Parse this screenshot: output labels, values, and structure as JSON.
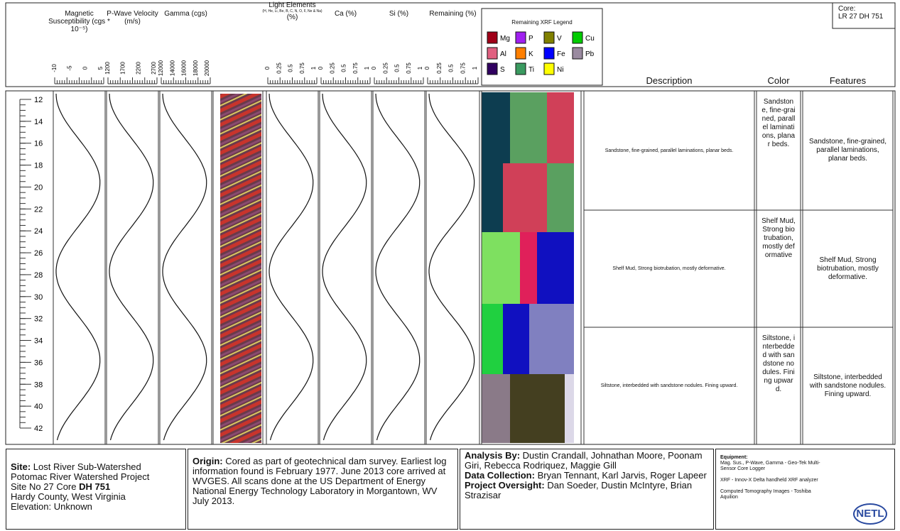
{
  "core": {
    "label": "Core:",
    "id": "LR 27 DH 751"
  },
  "tracks": [
    {
      "title": "Magnetic Susceptibility (cgs * 10⁻⁵)",
      "scale": [
        -10,
        -5,
        0,
        5
      ]
    },
    {
      "title": "P-Wave Velocity (m/s)",
      "scale": [
        1200,
        1700,
        2200,
        2700
      ]
    },
    {
      "title": "Gamma (cgs)",
      "scale": [
        12000,
        14000,
        16000,
        18000,
        20000
      ]
    },
    {
      "title": "Light Elements",
      "note": "(H, He, Li, Be, B, C, N, O, F, Ne & Na)",
      "unit": "(%)",
      "scale": [
        0,
        0.25,
        0.5,
        0.75,
        1
      ]
    },
    {
      "title": "Ca (%)",
      "scale": [
        0,
        0.25,
        0.5,
        0.75,
        1
      ]
    },
    {
      "title": "Si (%)",
      "scale": [
        0,
        0.25,
        0.5,
        0.75,
        1
      ]
    },
    {
      "title": "Remaining (%)",
      "scale": [
        0,
        0.25,
        0.5,
        0.75,
        1
      ]
    }
  ],
  "xrf_legend": {
    "title": "Remaining XRF Legend",
    "items": [
      {
        "name": "Mg",
        "color": "#a00018"
      },
      {
        "name": "P",
        "color": "#a020f0"
      },
      {
        "name": "V",
        "color": "#808000"
      },
      {
        "name": "Cu",
        "color": "#00cc00"
      },
      {
        "name": "Al",
        "color": "#e06080"
      },
      {
        "name": "K",
        "color": "#ff7f00"
      },
      {
        "name": "Fe",
        "color": "#0000ff"
      },
      {
        "name": "Pb",
        "color": "#9a8aa0"
      },
      {
        "name": "S",
        "color": "#300060"
      },
      {
        "name": "Ti",
        "color": "#3a9a60"
      },
      {
        "name": "Ni",
        "color": "#ffff00"
      }
    ]
  },
  "columns": {
    "description": "Description",
    "color": "Color",
    "features": "Features"
  },
  "depths": [
    12,
    14,
    16,
    18,
    20,
    22,
    24,
    26,
    28,
    30,
    32,
    34,
    36,
    38,
    40,
    42
  ],
  "intervals": [
    {
      "description": "Sandstone, fine-grained, parallel laminations, planar beds.",
      "color": "Sandstone, fine-grained, parallel laminations, planar beds.",
      "features": "Sandstone, fine-grained, parallel laminations, planar beds."
    },
    {
      "description": "Shelf Mud, Strong biotrubation, mostly deformative.",
      "color": "Shelf Mud, Strong biotrubation, mostly deformative",
      "features": "Shelf Mud, Strong biotrubation, mostly deformative."
    },
    {
      "description": "Siltstone, interbedded with sandstone nodules. Fining upward.",
      "color": "Siltstone, interbedded with sandstone nodules. Fining upward.",
      "features": "Siltstone, interbedded with sandstone nodules. Fining upward."
    }
  ],
  "footer": {
    "site": {
      "label": "Site:",
      "name": "Lost River Sub-Watershed",
      "project": "Potomac River Watershed Project",
      "site_no": "Site No 27 Core",
      "core_id": "DH 751",
      "county": "Hardy County, West Virginia",
      "elevation": "Elevation: Unknown"
    },
    "origin": {
      "label": "Origin:",
      "text": "Cored as part of geotechnical dam survey. Earliest log information found is February 1977. June 2013 core arrived at WVGES. All scans done at the US Department of Energy National Energy Technology Laboratory in Morgantown, WV July 2013."
    },
    "credits": [
      {
        "label": "Analysis By:",
        "text": "Dustin Crandall, Johnathan Moore, Poonam Giri, Rebecca Rodriquez, Maggie Gill"
      },
      {
        "label": "Data Collection:",
        "text": "Bryan Tennant, Karl Jarvis, Roger Lapeer"
      },
      {
        "label": "Project Oversight:",
        "text": "Dan Soeder, Dustin McIntyre, Brian Strazisar"
      }
    ],
    "equipment": {
      "label": "Equipment:",
      "items": [
        "Mag. Sus., P-Wave, Gamma - Geo-Tek Multi-Sensor Core Logger",
        "XRF - Innov-X Delta handheld XRF analyzer",
        "Computed Tomography Images - Toshiba Aquilion"
      ],
      "logo": "NETL"
    }
  }
}
